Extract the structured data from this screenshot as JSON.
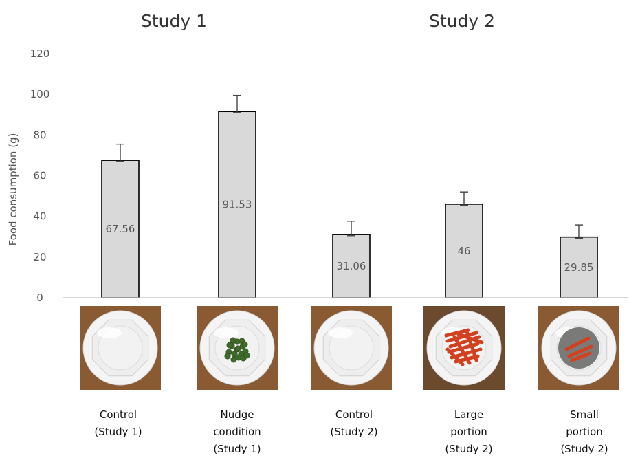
{
  "chart_data": {
    "type": "bar",
    "group_titles": [
      {
        "label": "Study 1"
      },
      {
        "label": "Study 2"
      }
    ],
    "ylabel": "Food consumption (g)",
    "ylim": [
      0,
      120
    ],
    "yticks": [
      0,
      20,
      40,
      60,
      80,
      100,
      120
    ],
    "grid": false,
    "legend": "none",
    "bar_color": "#d9d9d9",
    "bar_edge_color": "#000000",
    "categories": [
      {
        "lines": [
          "Control",
          "(Study 1)"
        ],
        "image": "empty white plate"
      },
      {
        "lines": [
          "Nudge",
          "condition",
          "(Study 1)"
        ],
        "image": "white plate with green peas"
      },
      {
        "lines": [
          "Control",
          "(Study 2)"
        ],
        "image": "empty white plate"
      },
      {
        "lines": [
          "Large",
          "portion",
          "(Study 2)"
        ],
        "image": "white plate with large portion of carrot sticks"
      },
      {
        "lines": [
          "Small",
          "portion",
          "(Study 2)"
        ],
        "image": "white plate with small portion of carrot sticks"
      }
    ],
    "values": [
      67.56,
      91.53,
      31.06,
      46,
      29.85
    ],
    "value_labels": [
      "67.56",
      "91.53",
      "31.06",
      "46",
      "29.85"
    ],
    "error_upper": [
      75.5,
      99.5,
      37.6,
      52.0,
      35.8
    ],
    "error_lower": [
      67.0,
      91.0,
      30.5,
      45.5,
      29.3
    ]
  }
}
